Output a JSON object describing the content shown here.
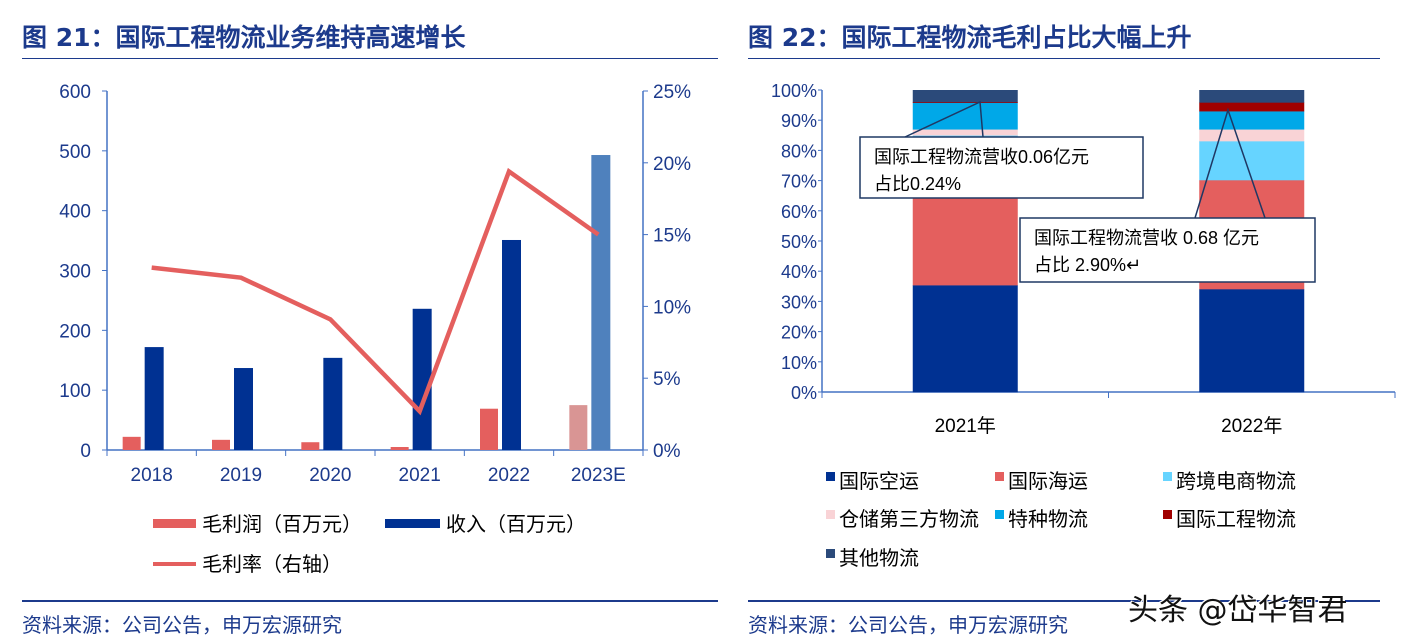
{
  "left": {
    "title": "图 21：国际工程物流业务维持高速增长",
    "source": "资料来源：公司公告，申万宏源研究"
  },
  "right": {
    "title": "图 22：国际工程物流毛利占比大幅上升",
    "source": "资料来源：公司公告，申万宏源研究"
  },
  "watermark": "头条 @岱华智君",
  "chart_data": [
    {
      "type": "bar+line",
      "categories": [
        "2018",
        "2019",
        "2020",
        "2021",
        "2022",
        "2023E"
      ],
      "ylim": [
        0,
        600
      ],
      "yticks": [
        0,
        100,
        200,
        300,
        400,
        500,
        600
      ],
      "y2lim": [
        0,
        25
      ],
      "y2ticks": [
        "0%",
        "5%",
        "10%",
        "15%",
        "20%",
        "25%"
      ],
      "series": [
        {
          "name": "毛利润（百万元）",
          "type": "bar",
          "values": [
            22,
            17,
            13,
            5,
            69,
            75
          ],
          "color": "#e45f5e",
          "forecast_color": "#d99594"
        },
        {
          "name": "收入（百万元）",
          "type": "bar",
          "values": [
            172,
            137,
            154,
            236,
            351,
            493
          ],
          "color": "#003192",
          "forecast_color": "#4f81bd"
        },
        {
          "name": "毛利率（右轴）",
          "type": "line",
          "axis": "right",
          "values": [
            12.7,
            12.0,
            9.1,
            2.7,
            19.4,
            15.0
          ],
          "color": "#e45f5e"
        }
      ],
      "legend": "bottom"
    },
    {
      "type": "stacked-bar",
      "categories": [
        "2021年",
        "2022年"
      ],
      "ylim": [
        0,
        100
      ],
      "yticks": [
        "0%",
        "10%",
        "20%",
        "30%",
        "40%",
        "50%",
        "60%",
        "70%",
        "80%",
        "90%",
        "100%"
      ],
      "series": [
        {
          "name": "国际空运",
          "values": [
            35.4,
            34.1
          ],
          "color": "#003192"
        },
        {
          "name": "国际海运",
          "values": [
            29.6,
            36.1
          ],
          "color": "#e45f5e"
        },
        {
          "name": "跨境电商物流",
          "values": [
            20.0,
            12.9
          ],
          "color": "#66d4ff"
        },
        {
          "name": "仓储第三方物流",
          "values": [
            2.0,
            3.9
          ],
          "color": "#f9d3d6"
        },
        {
          "name": "特种物流",
          "values": [
            8.8,
            6.0
          ],
          "color": "#00a8e8"
        },
        {
          "name": "国际工程物流",
          "values": [
            0.24,
            2.9
          ],
          "color": "#a00000"
        },
        {
          "name": "其他物流",
          "values": [
            3.96,
            4.1
          ],
          "color": "#2b4a7a"
        }
      ],
      "annotations": [
        {
          "line1": "国际工程物流营收0.06亿元",
          "line2": "占比0.24%"
        },
        {
          "line1": "国际工程物流营收  0.68  亿元",
          "line2": "占比 2.90%↵"
        }
      ],
      "legend": "bottom"
    }
  ]
}
